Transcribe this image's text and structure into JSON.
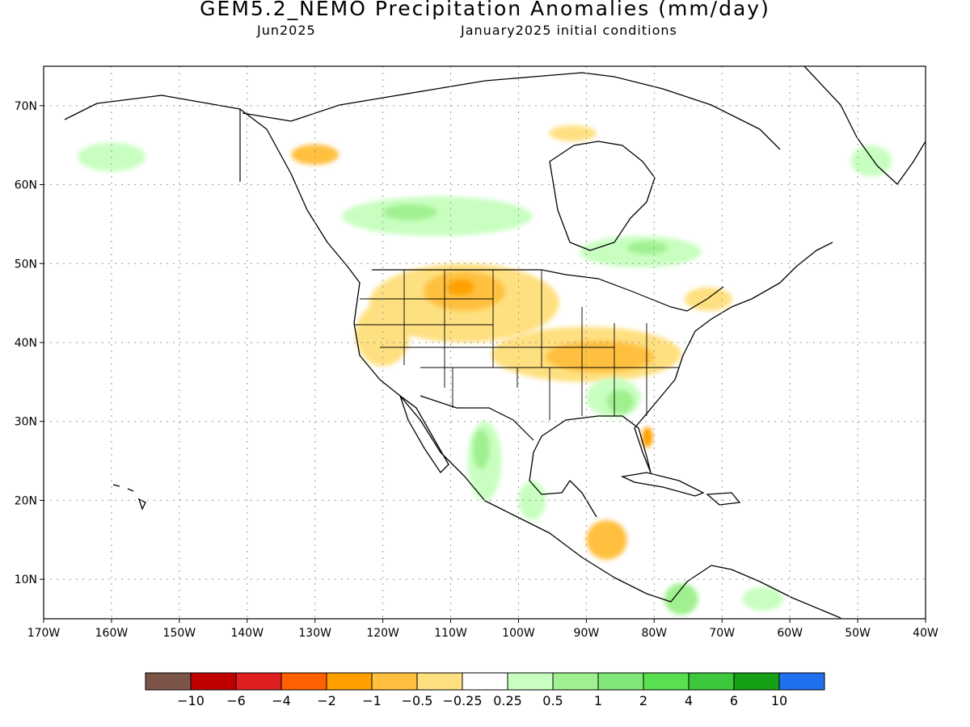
{
  "title": "GEM5.2_NEMO Precipitation Anomalies (mm/day)",
  "subtitle_month": "Jun2025",
  "subtitle_ic": "January2025 initial conditions",
  "map": {
    "lon_range": [
      -170,
      -40
    ],
    "lat_range": [
      5,
      75
    ],
    "lon_ticks": [
      {
        "value": -170,
        "label": "170W"
      },
      {
        "value": -160,
        "label": "160W"
      },
      {
        "value": -150,
        "label": "150W"
      },
      {
        "value": -140,
        "label": "140W"
      },
      {
        "value": -130,
        "label": "130W"
      },
      {
        "value": -120,
        "label": "120W"
      },
      {
        "value": -110,
        "label": "110W"
      },
      {
        "value": -100,
        "label": "100W"
      },
      {
        "value": -90,
        "label": "90W"
      },
      {
        "value": -80,
        "label": "80W"
      },
      {
        "value": -70,
        "label": "70W"
      },
      {
        "value": -60,
        "label": "60W"
      },
      {
        "value": -50,
        "label": "50W"
      },
      {
        "value": -40,
        "label": "40W"
      }
    ],
    "lat_ticks": [
      {
        "value": 70,
        "label": "70N"
      },
      {
        "value": 60,
        "label": "60N"
      },
      {
        "value": 50,
        "label": "50N"
      },
      {
        "value": 40,
        "label": "40N"
      },
      {
        "value": 30,
        "label": "30N"
      },
      {
        "value": 20,
        "label": "20N"
      },
      {
        "value": 10,
        "label": "10N"
      }
    ],
    "grid": true,
    "grid_style": "dotted"
  },
  "colorbar": {
    "colors": [
      "#7d5548",
      "#c00000",
      "#e02020",
      "#ff6000",
      "#ffa000",
      "#ffc040",
      "#ffe080",
      "#ffffff",
      "#c8ffc0",
      "#a0f090",
      "#80e878",
      "#58e050",
      "#3cc83c",
      "#14a014",
      "#2070f0"
    ],
    "labels": [
      "−10",
      "−6",
      "−4",
      "−2",
      "−1",
      "−0.5",
      "−0.25",
      "0.25",
      "0.5",
      "1",
      "2",
      "4",
      "6",
      "10"
    ]
  },
  "anomalies": [
    {
      "name": "northern-plains-dry",
      "color": "#ffe080",
      "lon": -108,
      "lat": 45,
      "rlon": 14,
      "rlat": 5
    },
    {
      "name": "montana-dry-core",
      "color": "#ffc040",
      "lon": -108,
      "lat": 46.5,
      "rlon": 6,
      "rlat": 2.5
    },
    {
      "name": "montana-dry-center",
      "color": "#ffa000",
      "lon": -108.5,
      "lat": 47,
      "rlon": 2,
      "rlat": 1
    },
    {
      "name": "ohio-valley-dry",
      "color": "#ffe080",
      "lon": -90,
      "lat": 38.5,
      "rlon": 14,
      "rlat": 3.5
    },
    {
      "name": "ohio-valley-dry-core",
      "color": "#ffc040",
      "lon": -88,
      "lat": 38.2,
      "rlon": 8,
      "rlat": 2
    },
    {
      "name": "california-dry",
      "color": "#ffe080",
      "lon": -120,
      "lat": 41,
      "rlon": 4,
      "rlat": 4
    },
    {
      "name": "alaska-yukon-dry",
      "color": "#ffc040",
      "lon": -130,
      "lat": 63.8,
      "rlon": 3.5,
      "rlat": 1.3
    },
    {
      "name": "baffin-dry",
      "color": "#ffe080",
      "lon": -92,
      "lat": 66.5,
      "rlon": 3.5,
      "rlat": 1
    },
    {
      "name": "southeast-wet",
      "color": "#c8ffc0",
      "lon": -86,
      "lat": 33,
      "rlon": 4,
      "rlat": 2.5
    },
    {
      "name": "southeast-wet-core",
      "color": "#a0f090",
      "lon": -85,
      "lat": 32.5,
      "rlon": 2,
      "rlat": 1.5
    },
    {
      "name": "canada-wet-band",
      "color": "#c8ffc0",
      "lon": -112,
      "lat": 56,
      "rlon": 14,
      "rlat": 2.5
    },
    {
      "name": "canada-wet-core",
      "color": "#a0f090",
      "lon": -116,
      "lat": 56.5,
      "rlon": 4,
      "rlat": 1
    },
    {
      "name": "hudson-wet",
      "color": "#c8ffc0",
      "lon": -82,
      "lat": 51.5,
      "rlon": 9,
      "rlat": 2
    },
    {
      "name": "hudson-wet-core",
      "color": "#a0f090",
      "lon": -81,
      "lat": 52,
      "rlon": 3,
      "rlat": 0.8
    },
    {
      "name": "alaska-wet",
      "color": "#c8ffc0",
      "lon": -160,
      "lat": 63.5,
      "rlon": 5,
      "rlat": 1.8
    },
    {
      "name": "mexico-wet",
      "color": "#c8ffc0",
      "lon": -105,
      "lat": 25,
      "rlon": 2.5,
      "rlat": 5
    },
    {
      "name": "mexico-wet-core",
      "color": "#a0f090",
      "lon": -105.5,
      "lat": 26.5,
      "rlon": 1.2,
      "rlat": 2.5
    },
    {
      "name": "yucatan-wet",
      "color": "#c8ffc0",
      "lon": -98,
      "lat": 20,
      "rlon": 2,
      "rlat": 2.5
    },
    {
      "name": "central-america-dry",
      "color": "#ffc040",
      "lon": -87,
      "lat": 15,
      "rlon": 3,
      "rlat": 2.5
    },
    {
      "name": "colombia-wet",
      "color": "#a0f090",
      "lon": -76,
      "lat": 7.5,
      "rlon": 2.5,
      "rlat": 2
    },
    {
      "name": "venezuela-wet",
      "color": "#c8ffc0",
      "lon": -64,
      "lat": 7.5,
      "rlon": 3,
      "rlat": 1.5
    },
    {
      "name": "greenland-wet",
      "color": "#c8ffc0",
      "lon": -48,
      "lat": 63,
      "rlon": 3,
      "rlat": 2
    },
    {
      "name": "florida-dry",
      "color": "#ffa000",
      "lon": -81,
      "lat": 28,
      "rlon": 0.8,
      "rlat": 1.3
    },
    {
      "name": "new-england-dry",
      "color": "#ffe080",
      "lon": -72,
      "lat": 45.5,
      "rlon": 3.5,
      "rlat": 1.5
    }
  ]
}
